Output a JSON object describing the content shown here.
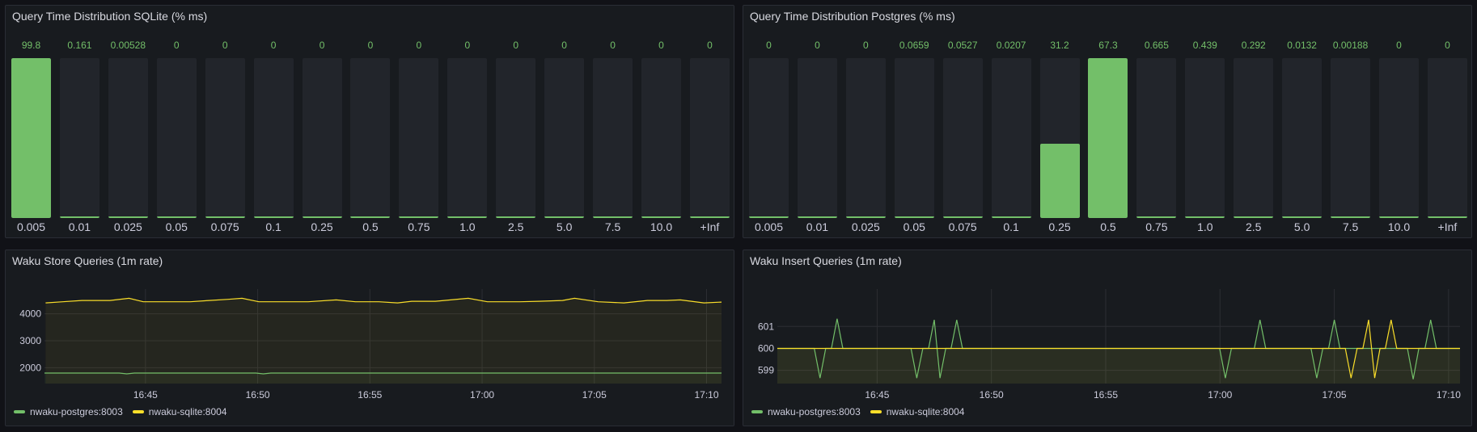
{
  "colors": {
    "green": "#73bf69",
    "yellow": "#fade2a"
  },
  "panels": {
    "sqlite_dist": {
      "title": "Query Time Distribution SQLite (% ms)"
    },
    "postgres_dist": {
      "title": "Query Time Distribution Postgres (% ms)"
    },
    "store": {
      "title": "Waku Store Queries (1m rate)"
    },
    "insert": {
      "title": "Waku Insert Queries (1m rate)"
    }
  },
  "chart_data": [
    {
      "type": "bar",
      "title": "Query Time Distribution SQLite (% ms)",
      "categories": [
        "0.005",
        "0.01",
        "0.025",
        "0.05",
        "0.075",
        "0.1",
        "0.25",
        "0.5",
        "0.75",
        "1.0",
        "2.5",
        "5.0",
        "7.5",
        "10.0",
        "+Inf"
      ],
      "value_labels": [
        "99.8",
        "0.161",
        "0.00528",
        "0",
        "0",
        "0",
        "0",
        "0",
        "0",
        "0",
        "0",
        "0",
        "0",
        "0",
        "0"
      ],
      "values": [
        99.8,
        0.161,
        0.00528,
        0,
        0,
        0,
        0,
        0,
        0,
        0,
        0,
        0,
        0,
        0,
        0
      ]
    },
    {
      "type": "bar",
      "title": "Query Time Distribution Postgres (% ms)",
      "categories": [
        "0.005",
        "0.01",
        "0.025",
        "0.05",
        "0.075",
        "0.1",
        "0.25",
        "0.5",
        "0.75",
        "1.0",
        "2.5",
        "5.0",
        "7.5",
        "10.0",
        "+Inf"
      ],
      "value_labels": [
        "0",
        "0",
        "0",
        "0.0659",
        "0.0527",
        "0.0207",
        "31.2",
        "67.3",
        "0.665",
        "0.439",
        "0.292",
        "0.0132",
        "0.00188",
        "0",
        "0"
      ],
      "values": [
        0,
        0,
        0,
        0.0659,
        0.0527,
        0.0207,
        31.2,
        67.3,
        0.665,
        0.439,
        0.292,
        0.0132,
        0.00188,
        0,
        0
      ]
    },
    {
      "type": "line",
      "title": "Waku Store Queries (1m rate)",
      "xlim": [
        "16:40:30",
        "17:10:40"
      ],
      "ylim": [
        1410,
        4920
      ],
      "x_ticks": [
        "16:45",
        "16:50",
        "16:55",
        "17:00",
        "17:05",
        "17:10"
      ],
      "y_ticks": [
        "2000",
        "3000",
        "4000"
      ],
      "grid": true,
      "legend": "bottom-left",
      "series": [
        {
          "name": "nwaku-postgres:8003",
          "color": "#73bf69",
          "points": [
            [
              "16:40:30",
              1800
            ],
            [
              "16:43:50",
              1800
            ],
            [
              "16:44:10",
              1770
            ],
            [
              "16:44:30",
              1800
            ],
            [
              "16:49:55",
              1800
            ],
            [
              "16:50:15",
              1770
            ],
            [
              "16:50:35",
              1800
            ],
            [
              "17:10:40",
              1800
            ]
          ]
        },
        {
          "name": "nwaku-sqlite:8004",
          "color": "#fade2a",
          "points": [
            [
              "16:40:33",
              4408
            ],
            [
              "16:41:19",
              4448
            ],
            [
              "16:42:10",
              4498
            ],
            [
              "16:43:25",
              4498
            ],
            [
              "16:44:16",
              4577
            ],
            [
              "16:44:54",
              4448
            ],
            [
              "16:45:32",
              4448
            ],
            [
              "16:47:00",
              4448
            ],
            [
              "16:47:50",
              4498
            ],
            [
              "16:48:41",
              4540
            ],
            [
              "16:49:18",
              4577
            ],
            [
              "16:50:03",
              4448
            ],
            [
              "16:52:15",
              4448
            ],
            [
              "16:53:30",
              4517
            ],
            [
              "16:54:21",
              4448
            ],
            [
              "16:55:24",
              4448
            ],
            [
              "16:56:14",
              4408
            ],
            [
              "16:56:52",
              4468
            ],
            [
              "16:57:55",
              4468
            ],
            [
              "16:59:23",
              4577
            ],
            [
              "17:00:14",
              4448
            ],
            [
              "17:01:42",
              4448
            ],
            [
              "17:02:32",
              4468
            ],
            [
              "17:03:35",
              4498
            ],
            [
              "17:04:07",
              4577
            ],
            [
              "17:05:10",
              4448
            ],
            [
              "17:06:19",
              4408
            ],
            [
              "17:07:22",
              4498
            ],
            [
              "17:08:13",
              4498
            ],
            [
              "17:08:50",
              4517
            ],
            [
              "17:09:53",
              4408
            ],
            [
              "17:10:40",
              4438
            ]
          ]
        }
      ]
    },
    {
      "type": "line",
      "title": "Waku Insert Queries (1m rate)",
      "xlim": [
        "16:40:38",
        "17:10:30"
      ],
      "ylim": [
        598.4,
        602.7
      ],
      "x_ticks": [
        "16:45",
        "16:50",
        "16:55",
        "17:00",
        "17:05",
        "17:10"
      ],
      "y_ticks": [
        "599",
        "600",
        "601"
      ],
      "grid": true,
      "legend": "bottom-left",
      "series": [
        {
          "name": "nwaku-postgres:8003",
          "color": "#73bf69",
          "points": [
            [
              "16:40:38",
              600
            ],
            [
              "16:42:15",
              600
            ],
            [
              "16:42:30",
              598.65
            ],
            [
              "16:42:45",
              600
            ],
            [
              "16:43:00",
              600
            ],
            [
              "16:43:15",
              601.35
            ],
            [
              "16:43:30",
              600
            ],
            [
              "16:46:29",
              600
            ],
            [
              "16:46:44",
              598.65
            ],
            [
              "16:47:00",
              600
            ],
            [
              "16:47:15",
              600
            ],
            [
              "16:47:30",
              601.3
            ],
            [
              "16:47:45",
              598.65
            ],
            [
              "16:48:00",
              600
            ],
            [
              "16:48:14",
              600
            ],
            [
              "16:48:29",
              601.3
            ],
            [
              "16:48:44",
              600
            ],
            [
              "16:59:59",
              600
            ],
            [
              "17:00:14",
              598.65
            ],
            [
              "17:00:30",
              600
            ],
            [
              "17:01:30",
              600
            ],
            [
              "17:01:45",
              601.3
            ],
            [
              "17:02:00",
              600
            ],
            [
              "17:03:59",
              600
            ],
            [
              "17:04:14",
              598.65
            ],
            [
              "17:04:30",
              600
            ],
            [
              "17:04:45",
              600
            ],
            [
              "17:05:00",
              601.3
            ],
            [
              "17:05:15",
              600
            ],
            [
              "17:08:12",
              600
            ],
            [
              "17:08:27",
              598.6
            ],
            [
              "17:08:42",
              600
            ],
            [
              "17:08:58",
              600
            ],
            [
              "17:09:13",
              601.3
            ],
            [
              "17:09:28",
              600
            ],
            [
              "17:10:30",
              600
            ]
          ]
        },
        {
          "name": "nwaku-sqlite:8004",
          "color": "#fade2a",
          "points": [
            [
              "16:40:38",
              600
            ],
            [
              "17:05:29",
              600
            ],
            [
              "17:05:44",
              598.65
            ],
            [
              "17:06:00",
              600
            ],
            [
              "17:06:15",
              600
            ],
            [
              "17:06:30",
              601.3
            ],
            [
              "17:06:46",
              598.65
            ],
            [
              "17:07:00",
              600
            ],
            [
              "17:07:14",
              600
            ],
            [
              "17:07:29",
              601.3
            ],
            [
              "17:07:44",
              600
            ],
            [
              "17:10:30",
              600
            ]
          ]
        }
      ]
    }
  ]
}
